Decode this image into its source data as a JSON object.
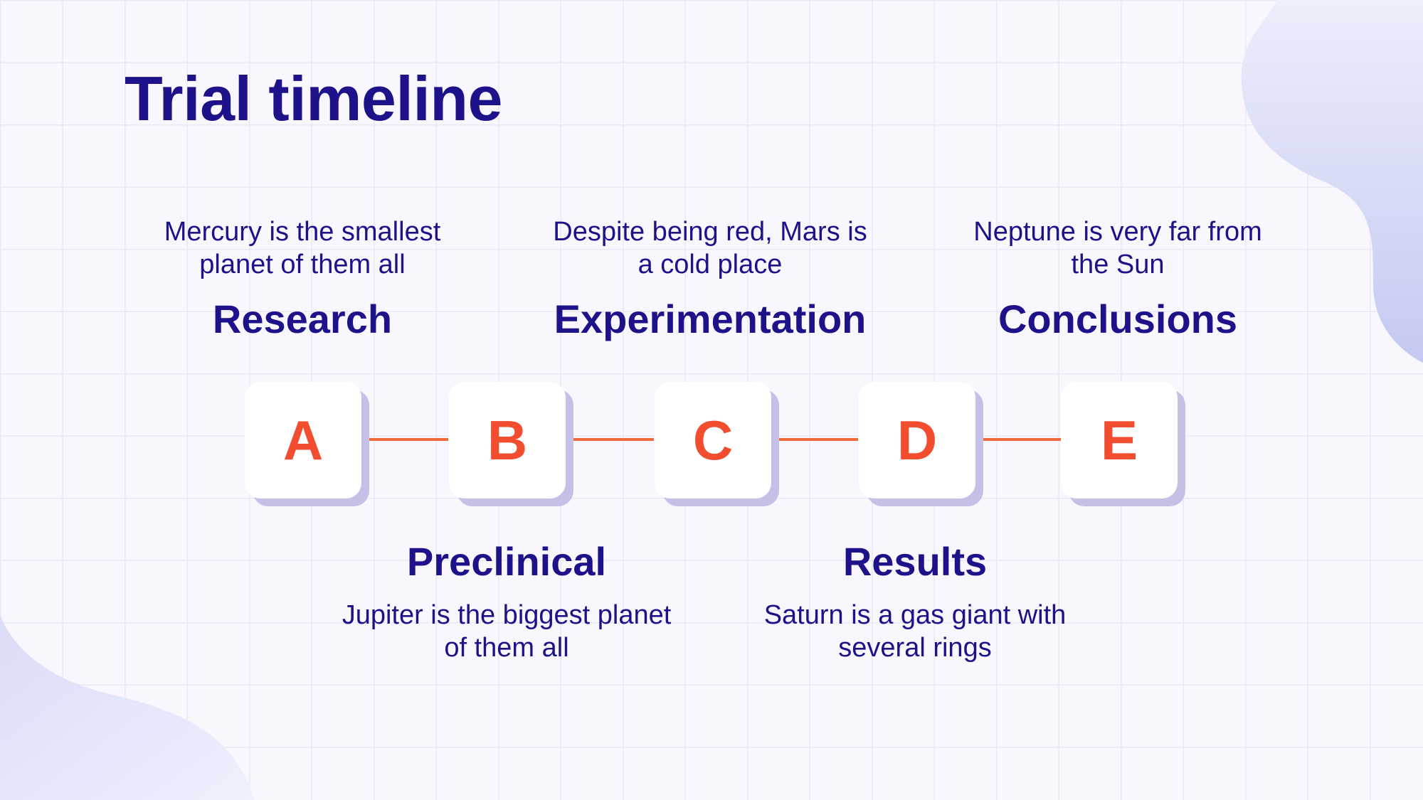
{
  "title": "Trial timeline",
  "colors": {
    "primary": "#1d1289",
    "accent": "#f24d2e",
    "connector": "#f06a3a",
    "card_shadow": "#c4c0e6"
  },
  "steps": [
    {
      "letter": "A",
      "heading": "Research",
      "description_line1": "Mercury is the smallest",
      "description_line2": "planet of them all"
    },
    {
      "letter": "B",
      "heading": "Preclinical",
      "description_line1": "Jupiter is the biggest planet",
      "description_line2": "of them all"
    },
    {
      "letter": "C",
      "heading": "Experimentation",
      "description_line1": "Despite being red, Mars is",
      "description_line2": "a cold place"
    },
    {
      "letter": "D",
      "heading": "Results",
      "description_line1": "Saturn is a gas giant with",
      "description_line2": "several rings"
    },
    {
      "letter": "E",
      "heading": "Conclusions",
      "description_line1": "Neptune is very far from",
      "description_line2": "the Sun"
    }
  ]
}
